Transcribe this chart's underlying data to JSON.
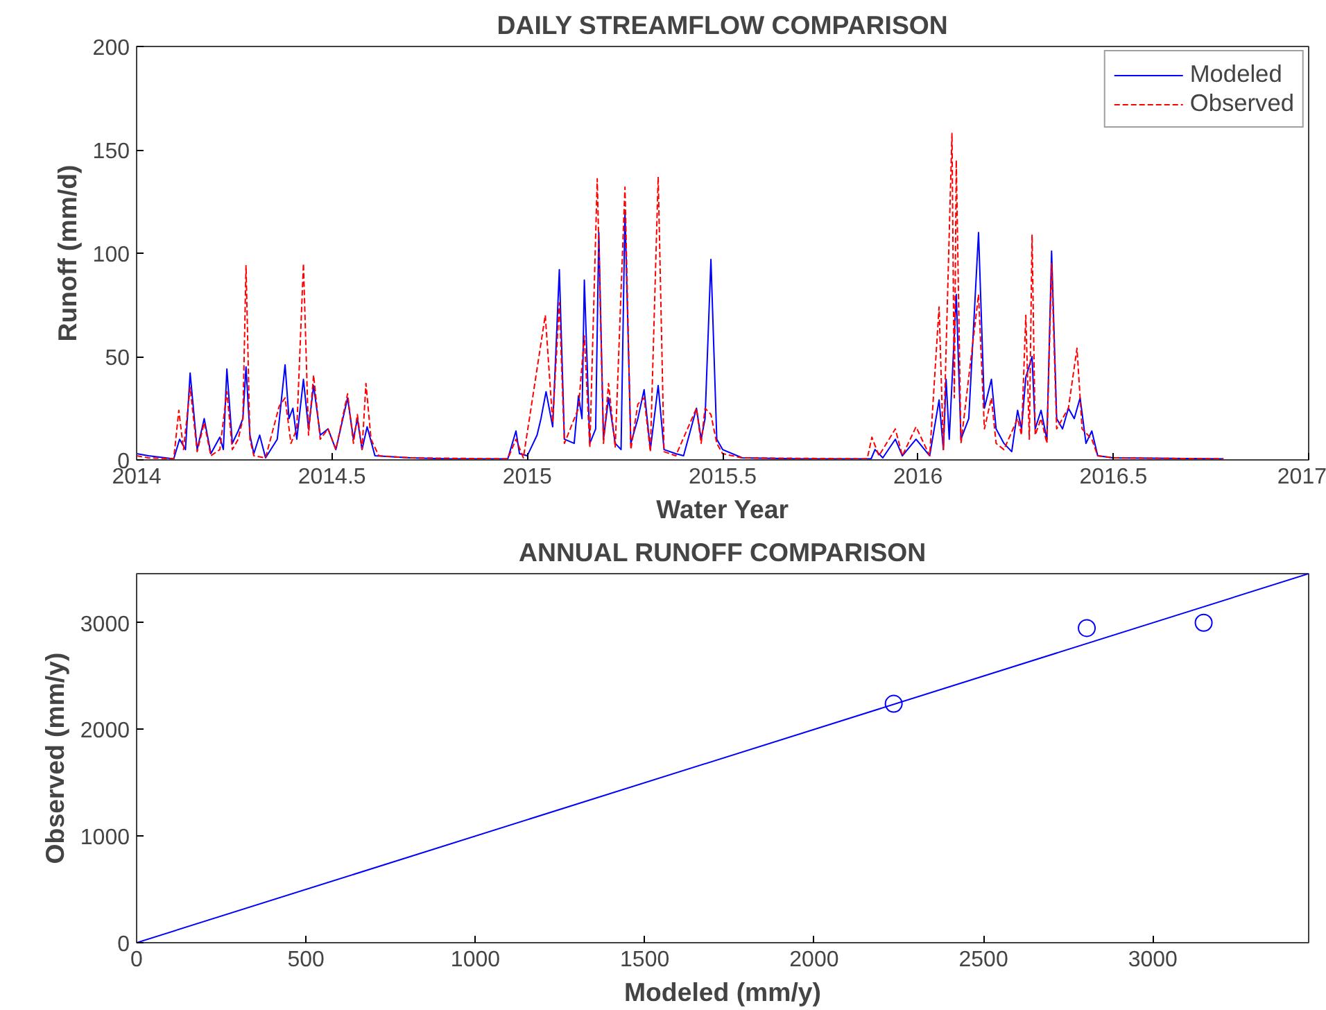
{
  "chart_data": [
    {
      "type": "line",
      "title": "DAILY STREAMFLOW COMPARISON",
      "xlabel": "Water Year",
      "ylabel": "Runoff (mm/d)",
      "xlim": [
        2014,
        2017
      ],
      "xticks": [
        2014,
        2014.5,
        2015,
        2015.5,
        2016,
        2016.5,
        2017
      ],
      "ylim": [
        0,
        200
      ],
      "yticks": [
        0,
        50,
        100,
        150,
        200
      ],
      "grid": false,
      "legend": "top right",
      "series": [
        {
          "name": "Modeled",
          "color": "#0000ff",
          "line_style": "solid",
          "x": [
            2014.0,
            2014.03,
            2014.095,
            2014.11,
            2014.125,
            2014.137,
            2014.155,
            2014.173,
            2014.19,
            2014.213,
            2014.222,
            2014.231,
            2014.245,
            2014.26,
            2014.272,
            2014.28,
            2014.29,
            2014.3,
            2014.315,
            2014.33,
            2014.36,
            2014.38,
            2014.39,
            2014.4,
            2014.41,
            2014.427,
            2014.44,
            2014.453,
            2014.47,
            2014.49,
            2014.51,
            2014.54,
            2014.555,
            2014.565,
            2014.577,
            2014.59,
            2014.61,
            2014.7,
            2014.8,
            2014.95,
            2014.971,
            2014.98,
            2015.0,
            2015.025,
            2015.035,
            2015.048,
            2015.065,
            2015.082,
            2015.095,
            2015.12,
            2015.131,
            2015.14,
            2015.146,
            2015.16,
            2015.175,
            2015.183,
            2015.195,
            2015.208,
            2015.225,
            2015.24,
            2015.25,
            2015.265,
            2015.283,
            2015.299,
            2015.315,
            2015.335,
            2015.35,
            2015.38,
            2015.4,
            2015.433,
            2015.445,
            2015.455,
            2015.47,
            2015.485,
            2015.5,
            2015.55,
            2015.7,
            2015.88,
            2015.89,
            2015.91,
            2015.942,
            2015.96,
            2015.995,
            2016.03,
            2016.054,
            2016.065,
            2016.072,
            2016.08,
            2016.098,
            2016.11,
            2016.13,
            2016.155,
            2016.17,
            2016.188,
            2016.2,
            2016.22,
            2016.24,
            2016.255,
            2016.265,
            2016.276,
            2016.292,
            2016.3,
            2016.315,
            2016.33,
            2016.342,
            2016.355,
            2016.37,
            2016.385,
            2016.4,
            2016.415,
            2016.43,
            2016.445,
            2016.46,
            2016.5,
            2016.782
          ],
          "values": [
            3,
            2,
            0.5,
            10,
            5,
            42,
            5,
            20,
            3,
            11,
            5,
            44,
            8,
            14,
            20,
            45,
            12,
            3,
            12,
            1,
            10,
            46,
            20,
            25,
            10,
            39,
            15,
            36,
            12,
            15,
            5,
            30,
            10,
            20,
            5,
            16,
            2,
            1,
            0.5,
            0.5,
            14,
            3,
            2,
            12,
            20,
            33,
            16,
            92,
            10,
            8,
            31,
            20,
            87,
            8,
            15,
            110,
            10,
            30,
            8,
            5,
            120,
            8,
            20,
            34,
            5,
            36,
            5,
            3,
            2,
            25,
            10,
            20,
            97,
            10,
            5,
            1,
            0.5,
            0.5,
            5,
            1,
            10,
            2,
            10,
            2,
            29,
            5,
            39,
            10,
            80,
            10,
            20,
            110,
            25,
            39,
            15,
            8,
            4,
            24,
            15,
            40,
            50,
            15,
            24,
            10,
            101,
            20,
            15,
            25,
            20,
            30,
            8,
            14,
            2,
            1,
            0.5
          ]
        },
        {
          "name": "Observed",
          "color": "#ff0000",
          "line_style": "dashed",
          "x": [
            2014.0,
            2014.03,
            2014.095,
            2014.108,
            2014.12,
            2014.137,
            2014.155,
            2014.173,
            2014.19,
            2014.213,
            2014.231,
            2014.245,
            2014.26,
            2014.272,
            2014.28,
            2014.29,
            2014.3,
            2014.33,
            2014.365,
            2014.38,
            2014.395,
            2014.41,
            2014.427,
            2014.44,
            2014.453,
            2014.47,
            2014.49,
            2014.51,
            2014.54,
            2014.555,
            2014.565,
            2014.577,
            2014.587,
            2014.6,
            2014.62,
            2014.7,
            2014.95,
            2014.971,
            2014.99,
            2015.046,
            2015.065,
            2015.082,
            2015.095,
            2015.131,
            2015.146,
            2015.16,
            2015.179,
            2015.195,
            2015.208,
            2015.225,
            2015.25,
            2015.265,
            2015.283,
            2015.299,
            2015.315,
            2015.335,
            2015.35,
            2015.38,
            2015.433,
            2015.445,
            2015.455,
            2015.47,
            2015.485,
            2015.5,
            2015.55,
            2015.87,
            2015.882,
            2015.9,
            2015.942,
            2015.96,
            2015.995,
            2016.03,
            2016.054,
            2016.065,
            2016.087,
            2016.093,
            2016.098,
            2016.11,
            2016.155,
            2016.17,
            2016.188,
            2016.2,
            2016.22,
            2016.255,
            2016.265,
            2016.276,
            2016.285,
            2016.292,
            2016.3,
            2016.315,
            2016.33,
            2016.342,
            2016.355,
            2016.385,
            2016.407,
            2016.42,
            2016.445,
            2016.46,
            2016.5,
            2016.782
          ],
          "values": [
            2,
            1,
            0.5,
            24,
            5,
            35,
            4,
            18,
            2,
            5,
            33,
            5,
            10,
            20,
            94,
            10,
            2,
            1,
            26,
            30,
            8,
            15,
            95,
            12,
            41,
            10,
            15,
            5,
            32,
            8,
            22,
            5,
            37,
            10,
            2,
            1,
            0.5,
            10,
            1,
            70,
            18,
            76,
            8,
            25,
            60,
            6,
            136,
            8,
            37,
            6,
            132,
            5,
            27,
            30,
            4,
            137,
            4,
            2,
            25,
            8,
            25,
            22,
            8,
            3,
            1,
            0.5,
            11,
            2,
            15,
            2,
            16,
            2,
            74,
            5,
            158,
            30,
            145,
            8,
            80,
            15,
            30,
            8,
            5,
            20,
            12,
            70,
            10,
            109,
            12,
            20,
            8,
            95,
            15,
            25,
            54,
            15,
            10,
            2,
            1,
            0.5
          ]
        }
      ]
    },
    {
      "type": "scatter",
      "title": "ANNUAL RUNOFF COMPARISON",
      "xlabel": "Modeled (mm/y)",
      "ylabel": "Observed (mm/y)",
      "xlim": [
        0,
        3460
      ],
      "xticks": [
        0,
        500,
        1000,
        1500,
        2000,
        2500,
        3000
      ],
      "ylim": [
        0,
        3460
      ],
      "yticks": [
        0,
        1000,
        2000,
        3000
      ],
      "grid": false,
      "legend": false,
      "series": [
        {
          "type": "line",
          "color": "#0000ff",
          "line_style": "solid",
          "x": [
            0,
            3460
          ],
          "values": [
            0,
            3460
          ]
        },
        {
          "type": "scatter",
          "color": "#0000ff",
          "marker": "circle",
          "x": [
            2235,
            2805,
            3150
          ],
          "values": [
            2240,
            2950,
            3000
          ]
        }
      ]
    }
  ]
}
